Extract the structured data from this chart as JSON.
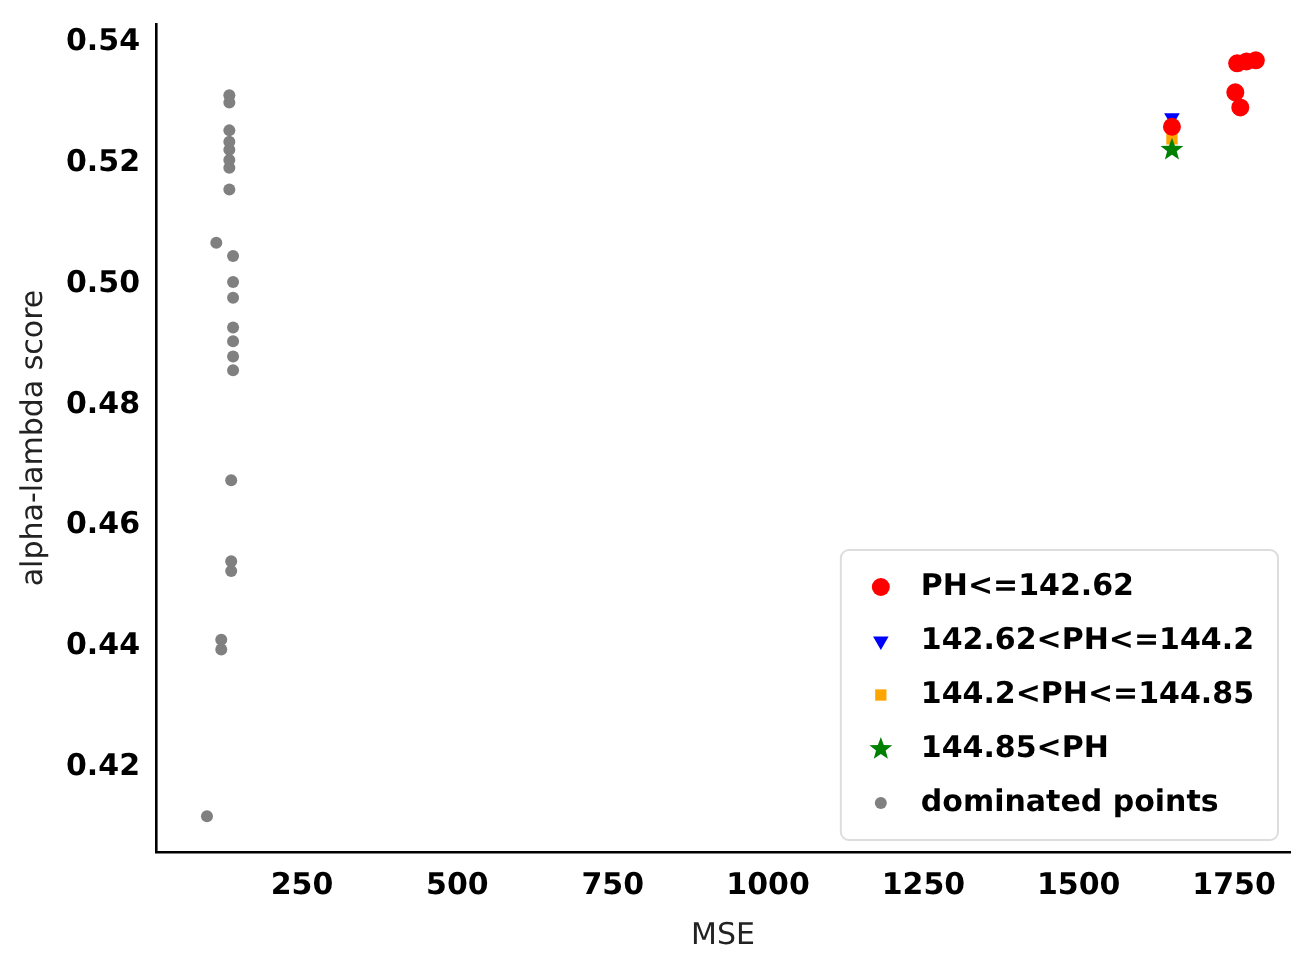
{
  "chart_data": {
    "type": "scatter",
    "xlabel": "MSE",
    "ylabel": "alpha-lambda score",
    "xlim": [
      15,
      1840
    ],
    "ylim": [
      0.406,
      0.543
    ],
    "xticks": [
      250,
      500,
      750,
      1000,
      1250,
      1500,
      1750
    ],
    "yticks": [
      0.42,
      0.44,
      0.46,
      0.48,
      {
        "value": 0.5,
        "label": "0.50"
      },
      0.52,
      0.54
    ],
    "grid": false,
    "legend": "bottom right",
    "series": [
      {
        "name": "PH<=142.62",
        "color": "#ff0000",
        "marker": "circle",
        "x": [
          1755,
          1770,
          1785,
          1752,
          1760,
          1650
        ],
        "values": [
          0.5365,
          0.5368,
          0.537,
          0.5317,
          0.5292,
          0.526
        ]
      },
      {
        "name": "142.62<PH<=144.2",
        "color": "#0000ff",
        "marker": "triangle",
        "x": [
          1650
        ],
        "values": [
          0.5275
        ]
      },
      {
        "name": "144.2<PH<=144.85",
        "color": "#ffa500",
        "marker": "square",
        "x": [
          1650
        ],
        "values": [
          0.524
        ]
      },
      {
        "name": "144.85<PH",
        "color": "#008000",
        "marker": "star",
        "x": [
          1650
        ],
        "values": [
          0.5222
        ]
      },
      {
        "name": "dominated points",
        "color": "#808080",
        "marker": "circle",
        "x": [
          133,
          133,
          133,
          133,
          133,
          133,
          133,
          133,
          112,
          139,
          139,
          139,
          139,
          139,
          139,
          139,
          136,
          136,
          136,
          120,
          120,
          97
        ],
        "values": [
          0.5312,
          0.53,
          0.5254,
          0.5235,
          0.5222,
          0.5205,
          0.5192,
          0.5156,
          0.5068,
          0.5046,
          0.5003,
          0.4977,
          0.4928,
          0.4905,
          0.488,
          0.4857,
          0.4675,
          0.4541,
          0.4525,
          0.4411,
          0.4395,
          0.4119
        ]
      }
    ]
  }
}
